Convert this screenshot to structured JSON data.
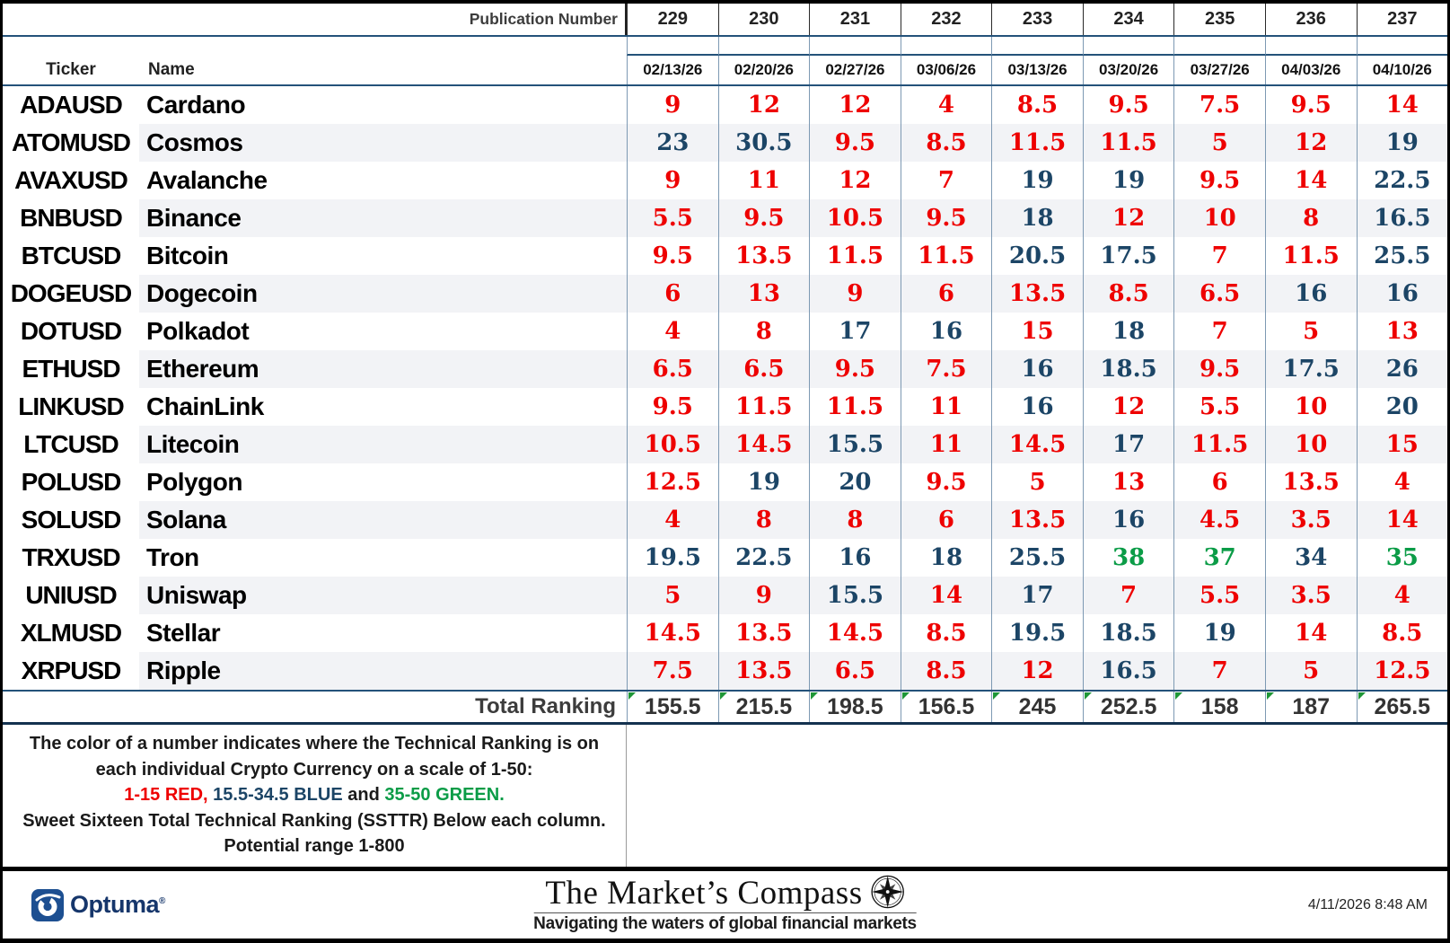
{
  "header": {
    "publication_label": "Publication Number",
    "ticker_label": "Ticker",
    "name_label": "Name"
  },
  "colors": {
    "red": "#EE0000",
    "blue": "#1C4566",
    "green": "#0B9C47",
    "flag_green": "#1E9636",
    "brand_navy": "#16366B"
  },
  "color_rule": {
    "red_max": 15,
    "blue_max": 34.5
  },
  "chart_data": {
    "type": "table",
    "columns": [
      {
        "publication": "229",
        "date": "02/13/26"
      },
      {
        "publication": "230",
        "date": "02/20/26"
      },
      {
        "publication": "231",
        "date": "02/27/26"
      },
      {
        "publication": "232",
        "date": "03/06/26"
      },
      {
        "publication": "233",
        "date": "03/13/26"
      },
      {
        "publication": "234",
        "date": "03/20/26"
      },
      {
        "publication": "235",
        "date": "03/27/26"
      },
      {
        "publication": "236",
        "date": "04/03/26"
      },
      {
        "publication": "237",
        "date": "04/10/26"
      }
    ],
    "rows": [
      {
        "ticker": "ADAUSD",
        "name": "Cardano",
        "values": [
          9,
          12,
          12,
          4,
          8.5,
          9.5,
          7.5,
          9.5,
          14
        ]
      },
      {
        "ticker": "ATOMUSD",
        "name": "Cosmos",
        "values": [
          23,
          30.5,
          9.5,
          8.5,
          11.5,
          11.5,
          5,
          12,
          19
        ]
      },
      {
        "ticker": "AVAXUSD",
        "name": "Avalanche",
        "values": [
          9,
          11,
          12,
          7,
          19,
          19,
          9.5,
          14,
          22.5
        ]
      },
      {
        "ticker": "BNBUSD",
        "name": "Binance",
        "values": [
          5.5,
          9.5,
          10.5,
          9.5,
          18,
          12,
          10,
          8,
          16.5
        ]
      },
      {
        "ticker": "BTCUSD",
        "name": "Bitcoin",
        "values": [
          9.5,
          13.5,
          11.5,
          11.5,
          20.5,
          17.5,
          7,
          11.5,
          25.5
        ]
      },
      {
        "ticker": "DOGEUSD",
        "name": "Dogecoin",
        "values": [
          6,
          13,
          9,
          6,
          13.5,
          8.5,
          6.5,
          16,
          16
        ]
      },
      {
        "ticker": "DOTUSD",
        "name": "Polkadot",
        "values": [
          4,
          8,
          17,
          16,
          15,
          18,
          7,
          5,
          13
        ]
      },
      {
        "ticker": "ETHUSD",
        "name": "Ethereum",
        "values": [
          6.5,
          6.5,
          9.5,
          7.5,
          16,
          18.5,
          9.5,
          17.5,
          26
        ]
      },
      {
        "ticker": "LINKUSD",
        "name": "ChainLink",
        "values": [
          9.5,
          11.5,
          11.5,
          11,
          16,
          12,
          5.5,
          10,
          20
        ]
      },
      {
        "ticker": "LTCUSD",
        "name": "Litecoin",
        "values": [
          10.5,
          14.5,
          15.5,
          11,
          14.5,
          17,
          11.5,
          10,
          15
        ]
      },
      {
        "ticker": "POLUSD",
        "name": "Polygon",
        "values": [
          12.5,
          19,
          20,
          9.5,
          5,
          13,
          6,
          13.5,
          4
        ]
      },
      {
        "ticker": "SOLUSD",
        "name": "Solana",
        "values": [
          4,
          8,
          8,
          6,
          13.5,
          16,
          4.5,
          3.5,
          14
        ]
      },
      {
        "ticker": "TRXUSD",
        "name": "Tron",
        "values": [
          19.5,
          22.5,
          16,
          18,
          25.5,
          38,
          37,
          34,
          35
        ]
      },
      {
        "ticker": "UNIUSD",
        "name": "Uniswap",
        "values": [
          5,
          9,
          15.5,
          14,
          17,
          7,
          5.5,
          3.5,
          4
        ]
      },
      {
        "ticker": "XLMUSD",
        "name": "Stellar",
        "values": [
          14.5,
          13.5,
          14.5,
          8.5,
          19.5,
          18.5,
          19,
          14,
          8.5
        ]
      },
      {
        "ticker": "XRPUSD",
        "name": "Ripple",
        "values": [
          7.5,
          13.5,
          6.5,
          8.5,
          12,
          16.5,
          7,
          5,
          12.5
        ]
      }
    ],
    "total_label": "Total Ranking",
    "totals": [
      155.5,
      215.5,
      198.5,
      156.5,
      245,
      252.5,
      158,
      187,
      265.5
    ],
    "value_color_scale": {
      "red": "1-15",
      "blue": "15.5-34.5",
      "green": "35-50"
    }
  },
  "legend": {
    "line1": "The color of a number indicates where the Technical Ranking is on",
    "line2": "each individual Crypto Currency on a scale of 1-50:",
    "scale_parts": [
      {
        "text": "1-15 RED, ",
        "color": "#EE0000"
      },
      {
        "text": "15.5-34.5 BLUE",
        "color": "#1C4566"
      },
      {
        "text": " and ",
        "color": "#1A1A1A"
      },
      {
        "text": "35-50 GREEN.",
        "color": "#0B9C47"
      }
    ],
    "line4": "Sweet Sixteen Total Technical Ranking (SSTTR) Below each column.",
    "line5": "Potential range 1-800"
  },
  "footer": {
    "brand": "Optuma",
    "title": "The Market’s Compass",
    "subtitle": "Navigating the waters of global financial markets",
    "datetime": "4/11/2026 8:48 AM"
  }
}
